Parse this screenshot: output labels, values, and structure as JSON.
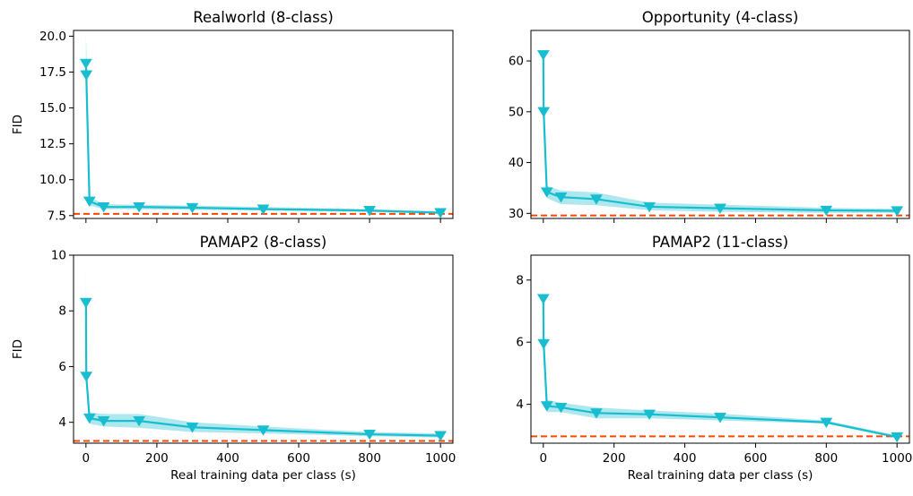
{
  "colors": {
    "series": "#17becf",
    "band": "#17becf",
    "reference": "#ff4500",
    "axes": "#000000"
  },
  "chart_data": [
    {
      "type": "line",
      "title": "Realworld (8-class)",
      "xlabel": "",
      "ylabel": "FID",
      "xlim": [
        -35,
        1035
      ],
      "ylim": [
        7.3,
        20.4
      ],
      "xticks": [],
      "yticks": [
        7.5,
        10.0,
        12.5,
        15.0,
        17.5,
        20.0
      ],
      "ytick_labels": [
        "7.5",
        "10.0",
        "12.5",
        "15.0",
        "17.5",
        "20.0"
      ],
      "reference_line": 7.62,
      "grid": false,
      "marker": "triangle-down",
      "x": [
        0,
        1,
        10,
        50,
        150,
        300,
        500,
        800,
        1000
      ],
      "y": [
        18.1,
        17.3,
        8.5,
        8.1,
        8.1,
        8.05,
        7.95,
        7.85,
        7.7
      ],
      "lower": [
        16.0,
        15.0,
        8.2,
        7.95,
        7.95,
        7.9,
        7.85,
        7.75,
        7.62
      ],
      "upper": [
        20.1,
        19.4,
        8.8,
        8.3,
        8.25,
        8.2,
        8.1,
        7.95,
        7.8
      ]
    },
    {
      "type": "line",
      "title": "Opportunity (4-class)",
      "xlabel": "",
      "ylabel": "",
      "xlim": [
        -35,
        1035
      ],
      "ylim": [
        29.0,
        66.0
      ],
      "xticks": [],
      "yticks": [
        30,
        40,
        50,
        60
      ],
      "ytick_labels": [
        "30",
        "40",
        "50",
        "60"
      ],
      "reference_line": 29.6,
      "grid": false,
      "marker": "triangle-down",
      "x": [
        0,
        1,
        10,
        50,
        150,
        300,
        500,
        800,
        1000
      ],
      "y": [
        61.2,
        50.0,
        34.2,
        33.2,
        32.8,
        31.3,
        31.0,
        30.6,
        30.5
      ],
      "lower": [
        57.0,
        47.0,
        33.0,
        31.8,
        31.6,
        30.6,
        30.3,
        30.1,
        30.1
      ],
      "upper": [
        65.0,
        53.0,
        35.4,
        34.5,
        34.1,
        32.1,
        31.7,
        31.1,
        30.9
      ]
    },
    {
      "type": "line",
      "title": "PAMAP2 (8-class)",
      "xlabel": "Real training data per class (s)",
      "ylabel": "FID",
      "xlim": [
        -35,
        1035
      ],
      "ylim": [
        3.25,
        10.0
      ],
      "xticks": [
        0,
        200,
        400,
        600,
        800,
        1000
      ],
      "xtick_labels": [
        "0",
        "200",
        "400",
        "600",
        "800",
        "1000"
      ],
      "yticks": [
        4,
        6,
        8,
        10
      ],
      "ytick_labels": [
        "4",
        "6",
        "8",
        "10"
      ],
      "reference_line": 3.33,
      "grid": false,
      "marker": "triangle-down",
      "x": [
        0,
        1,
        10,
        50,
        150,
        300,
        500,
        800,
        1000
      ],
      "y": [
        8.3,
        5.65,
        4.15,
        4.05,
        4.05,
        3.82,
        3.72,
        3.57,
        3.52
      ],
      "lower": [
        7.0,
        5.5,
        3.95,
        3.85,
        3.8,
        3.65,
        3.6,
        3.5,
        3.45
      ],
      "upper": [
        9.7,
        5.8,
        4.35,
        4.3,
        4.3,
        4.0,
        3.85,
        3.65,
        3.6
      ]
    },
    {
      "type": "line",
      "title": "PAMAP2 (11-class)",
      "xlabel": "Real training data per class (s)",
      "ylabel": "",
      "xlim": [
        -35,
        1035
      ],
      "ylim": [
        2.75,
        8.8
      ],
      "xticks": [
        0,
        200,
        400,
        600,
        800,
        1000
      ],
      "xtick_labels": [
        "0",
        "200",
        "400",
        "600",
        "800",
        "1000"
      ],
      "yticks": [
        4,
        6,
        8
      ],
      "ytick_labels": [
        "4",
        "6",
        "8"
      ],
      "reference_line": 2.97,
      "grid": false,
      "marker": "triangle-down",
      "x": [
        0,
        1,
        10,
        50,
        150,
        300,
        500,
        800,
        1000
      ],
      "y": [
        7.4,
        5.95,
        3.95,
        3.9,
        3.72,
        3.68,
        3.58,
        3.42,
        2.95
      ],
      "lower": [
        6.2,
        5.9,
        3.75,
        3.75,
        3.55,
        3.55,
        3.48,
        3.38,
        2.9
      ],
      "upper": [
        8.6,
        6.0,
        4.15,
        4.05,
        3.9,
        3.8,
        3.7,
        3.48,
        3.0
      ]
    }
  ]
}
